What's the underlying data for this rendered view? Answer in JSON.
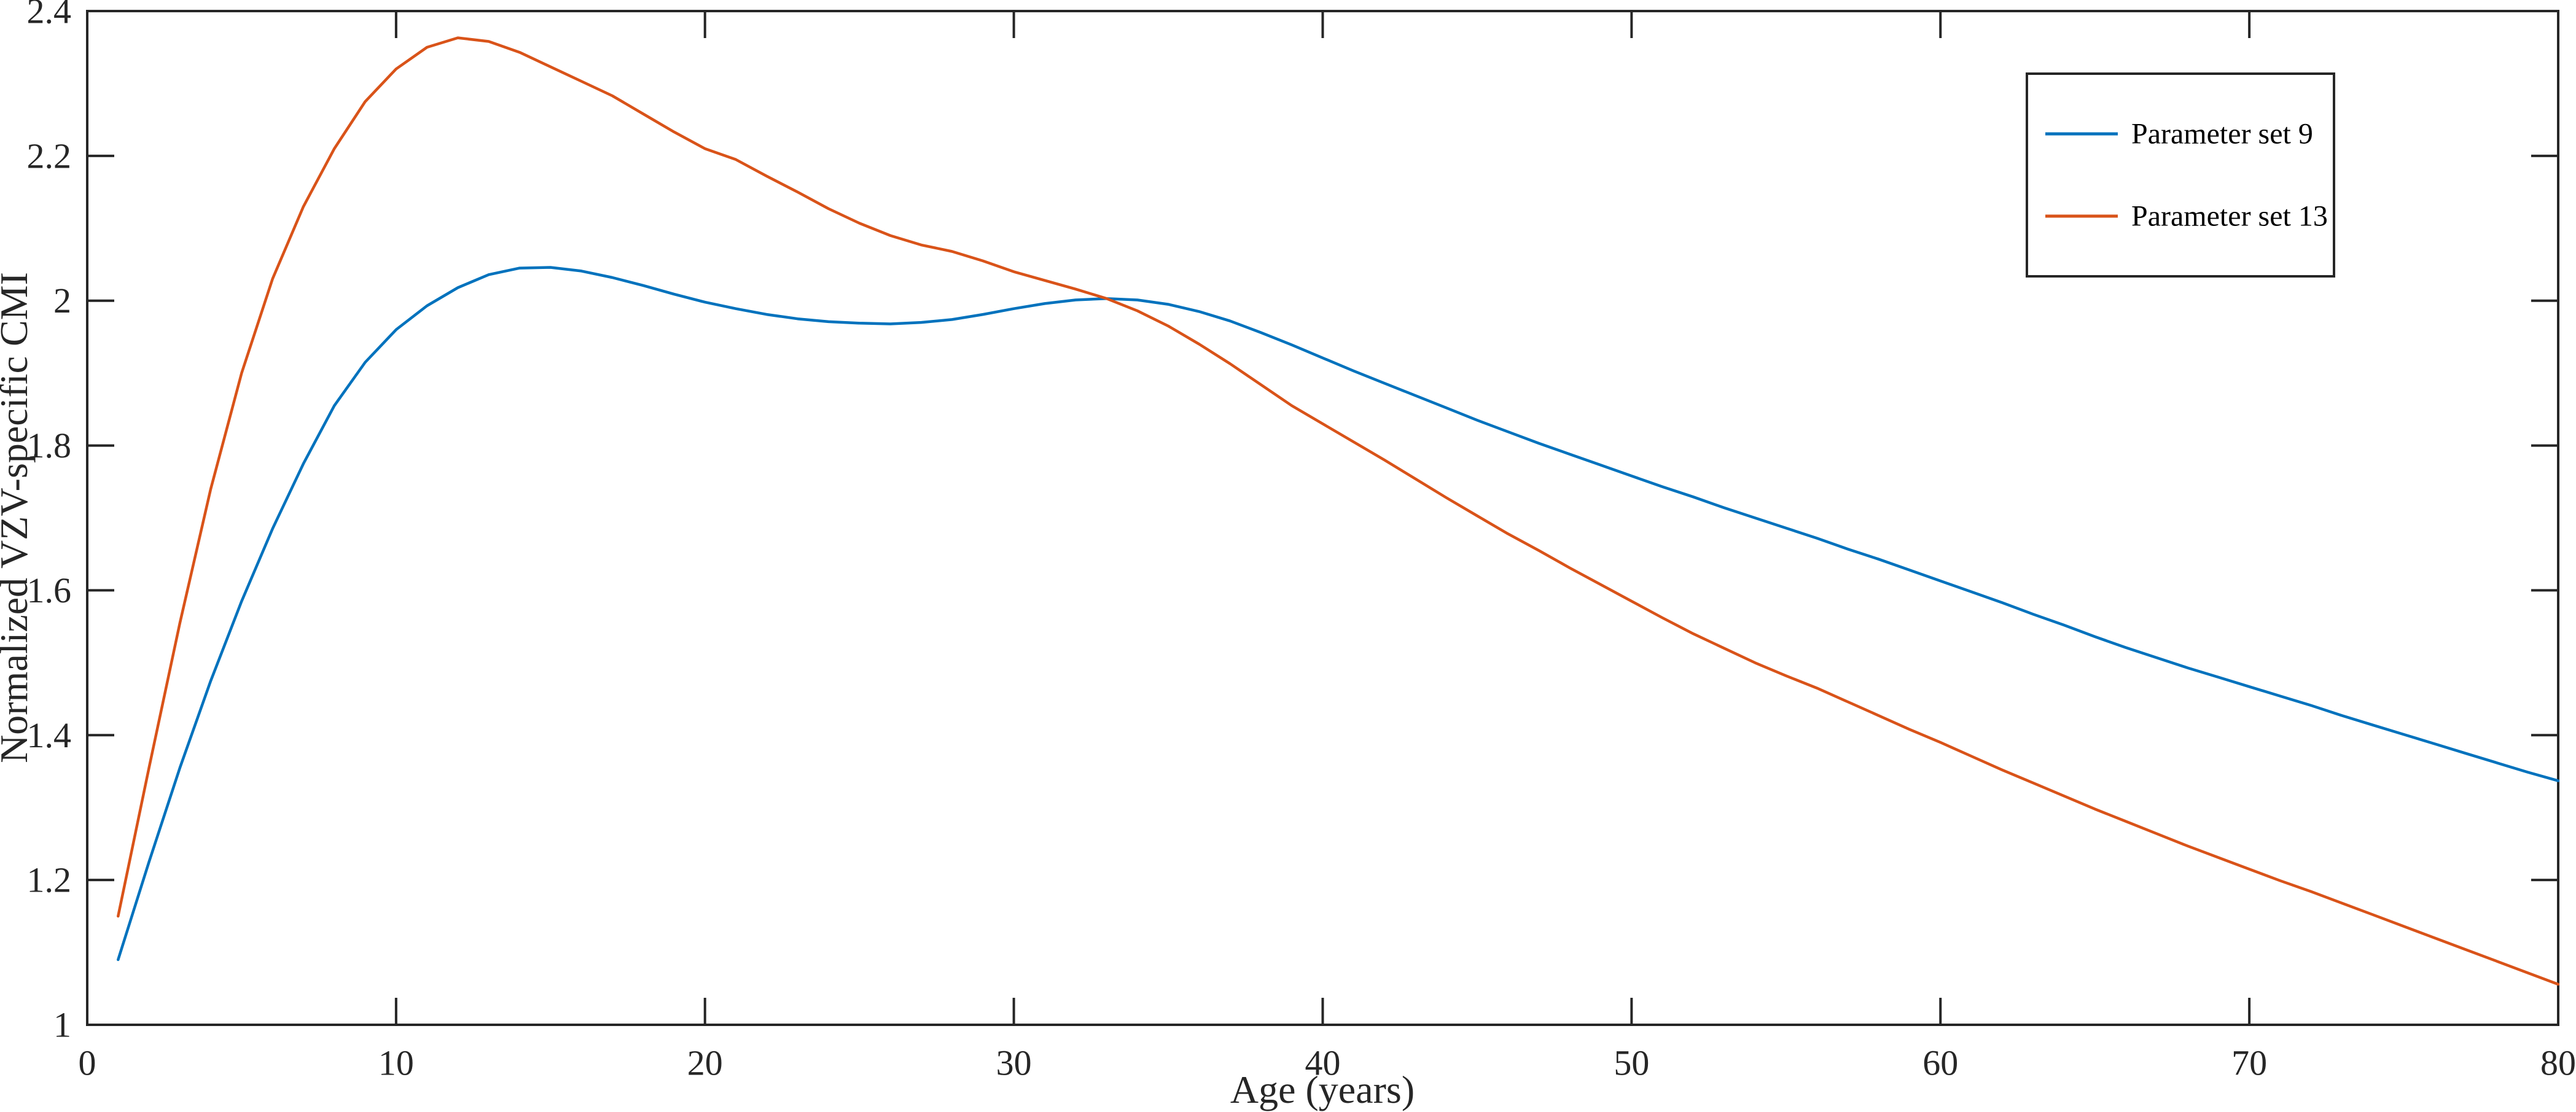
{
  "figure": {
    "background": "#ffffff",
    "axes_color": "#262626"
  },
  "chart_data": {
    "type": "line",
    "title": "",
    "xlabel": "Age (years)",
    "ylabel": "Normalized VZV-specific CMI",
    "xlim": [
      0,
      80
    ],
    "ylim": [
      1,
      2.4
    ],
    "xticks": [
      0,
      10,
      20,
      30,
      40,
      50,
      60,
      70,
      80
    ],
    "xtick_labels": [
      "0",
      "10",
      "20",
      "30",
      "40",
      "50",
      "60",
      "70",
      "80"
    ],
    "yticks": [
      1,
      1.2,
      1.4,
      1.6,
      1.8,
      2,
      2.2,
      2.4
    ],
    "ytick_labels": [
      "1",
      "1.2",
      "1.4",
      "1.6",
      "1.8",
      "2",
      "2.2",
      "2.4"
    ],
    "grid": false,
    "legend_position": "top-right",
    "x": [
      1,
      2,
      3,
      4,
      5,
      6,
      7,
      8,
      9,
      10,
      11,
      12,
      13,
      14,
      15,
      16,
      17,
      18,
      19,
      20,
      21,
      22,
      23,
      24,
      25,
      26,
      27,
      28,
      29,
      30,
      31,
      32,
      33,
      34,
      35,
      36,
      37,
      38,
      39,
      40,
      41,
      42,
      43,
      44,
      45,
      46,
      47,
      48,
      49,
      50,
      51,
      52,
      53,
      54,
      55,
      56,
      57,
      58,
      59,
      60,
      61,
      62,
      63,
      64,
      65,
      66,
      67,
      68,
      69,
      70,
      71,
      72,
      73,
      74,
      75,
      76,
      77,
      78,
      79,
      80
    ],
    "series": [
      {
        "name": "Parameter set 9",
        "color": "#0072BD",
        "values": [
          1.09,
          1.225,
          1.355,
          1.475,
          1.585,
          1.685,
          1.775,
          1.855,
          1.915,
          1.96,
          1.993,
          2.018,
          2.036,
          2.045,
          2.046,
          2.041,
          2.032,
          2.021,
          2.009,
          1.998,
          1.989,
          1.981,
          1.975,
          1.971,
          1.969,
          1.968,
          1.97,
          1.974,
          1.981,
          1.989,
          1.996,
          2.001,
          2.003,
          2.001,
          1.995,
          1.985,
          1.972,
          1.956,
          1.939,
          1.921,
          1.903,
          1.886,
          1.869,
          1.852,
          1.835,
          1.819,
          1.803,
          1.788,
          1.773,
          1.758,
          1.743,
          1.729,
          1.714,
          1.7,
          1.686,
          1.672,
          1.657,
          1.643,
          1.628,
          1.613,
          1.598,
          1.583,
          1.567,
          1.552,
          1.536,
          1.521,
          1.507,
          1.493,
          1.48,
          1.467,
          1.454,
          1.441,
          1.427,
          1.414,
          1.401,
          1.388,
          1.375,
          1.362,
          1.349,
          1.337
        ]
      },
      {
        "name": "Parameter set 13",
        "color": "#D95319",
        "values": [
          1.15,
          1.355,
          1.555,
          1.74,
          1.9,
          2.03,
          2.13,
          2.21,
          2.275,
          2.32,
          2.35,
          2.363,
          2.358,
          2.343,
          2.323,
          2.303,
          2.283,
          2.258,
          2.233,
          2.21,
          2.195,
          2.172,
          2.15,
          2.127,
          2.107,
          2.09,
          2.077,
          2.068,
          2.055,
          2.04,
          2.028,
          2.016,
          2.003,
          1.986,
          1.965,
          1.94,
          1.913,
          1.884,
          1.855,
          1.83,
          1.805,
          1.78,
          1.754,
          1.728,
          1.703,
          1.678,
          1.655,
          1.631,
          1.608,
          1.585,
          1.562,
          1.54,
          1.52,
          1.5,
          1.482,
          1.465,
          1.446,
          1.427,
          1.408,
          1.39,
          1.371,
          1.352,
          1.334,
          1.316,
          1.298,
          1.281,
          1.264,
          1.247,
          1.231,
          1.215,
          1.199,
          1.184,
          1.168,
          1.152,
          1.136,
          1.12,
          1.104,
          1.088,
          1.072,
          1.056
        ]
      }
    ]
  }
}
